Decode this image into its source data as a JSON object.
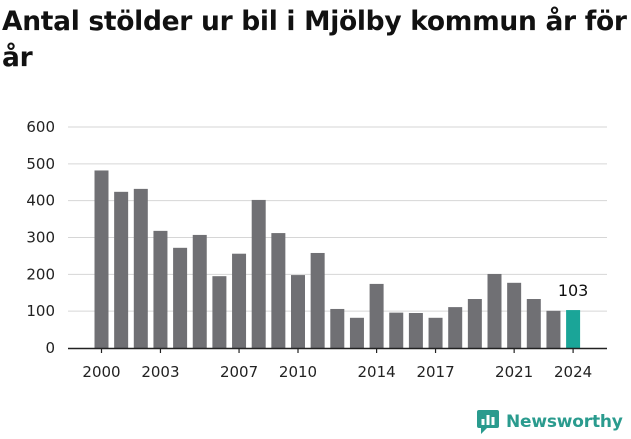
{
  "title": "Antal stölder ur bil i Mjölby kommun år för år",
  "brand": {
    "name": "Newsworthy",
    "logo_icon": "newsworthy-logo-icon",
    "color": "#2a9b8e"
  },
  "chart_data": {
    "type": "bar",
    "title": "Antal stölder ur bil i Mjölby kommun år för år",
    "xlabel": "",
    "ylabel": "",
    "ylim": [
      0,
      600
    ],
    "yticks": [
      0,
      100,
      200,
      300,
      400,
      500,
      600
    ],
    "xtick_labels": [
      "2000",
      "2003",
      "2007",
      "2010",
      "2014",
      "2017",
      "2021",
      "2024"
    ],
    "grid": true,
    "legend": "none",
    "categories": [
      "2000",
      "2001",
      "2002",
      "2003",
      "2004",
      "2005",
      "2006",
      "2007",
      "2008",
      "2009",
      "2010",
      "2011",
      "2012",
      "2013",
      "2014",
      "2015",
      "2016",
      "2017",
      "2018",
      "2019",
      "2020",
      "2021",
      "2022",
      "2023",
      "2024"
    ],
    "values": [
      482,
      424,
      432,
      318,
      272,
      307,
      195,
      256,
      402,
      312,
      198,
      258,
      106,
      82,
      174,
      96,
      95,
      82,
      111,
      133,
      201,
      177,
      133,
      101,
      103
    ],
    "colors": {
      "bar": "#707074",
      "highlight": "#1aa598"
    },
    "highlight_category": "2024",
    "value_labels": [
      {
        "category": "2024",
        "text": "103"
      }
    ]
  }
}
